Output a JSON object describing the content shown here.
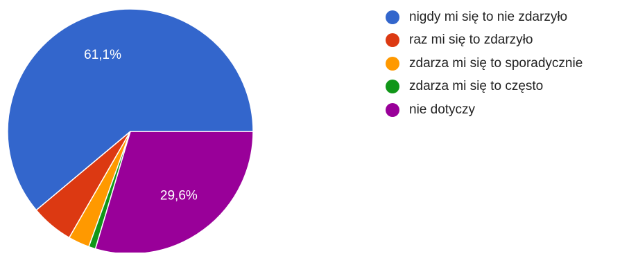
{
  "chart_data": {
    "type": "pie",
    "title": "",
    "categories": [
      "nigdy mi się to nie zdarzyło",
      "raz mi się to zdarzyło",
      "zdarza mi się to sporadycznie",
      "zdarza mi się to często",
      "nie dotyczy"
    ],
    "values": [
      61.1,
      5.6,
      2.8,
      0.9,
      29.6
    ],
    "value_labels": [
      "61,1%",
      "",
      "",
      "",
      "29,6%"
    ],
    "colors": [
      "#3366cc",
      "#dc3912",
      "#ff9900",
      "#109618",
      "#990099"
    ],
    "legend_position": "right"
  }
}
